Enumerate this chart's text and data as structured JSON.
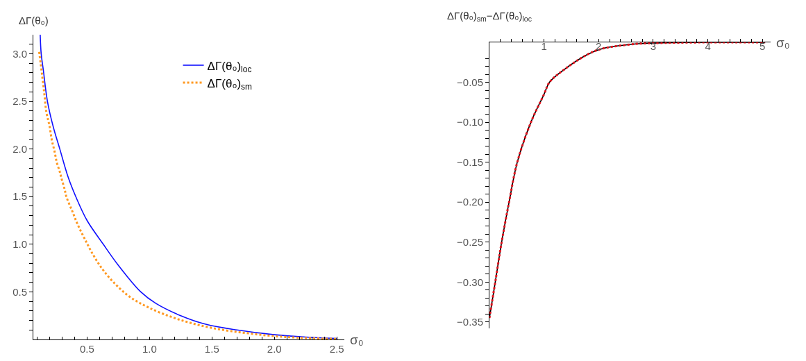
{
  "chart_data": [
    {
      "type": "line",
      "xlabel": "σ₀",
      "ylabel": "ΔΓ(θ₀)",
      "legend": "top right",
      "marker": "none",
      "xlim": [
        0.07,
        2.56
      ],
      "ylim": [
        0,
        3.2
      ],
      "xticks": [
        {
          "value": 0.1,
          "label": null
        },
        {
          "value": 0.2,
          "label": null
        },
        {
          "value": 0.3,
          "label": null
        },
        {
          "value": 0.4,
          "label": null
        },
        0.5,
        {
          "value": 0.6,
          "label": null
        },
        {
          "value": 0.7,
          "label": null
        },
        {
          "value": 0.8,
          "label": null
        },
        {
          "value": 0.9,
          "label": null
        },
        {
          "value": 1,
          "label": "1.0"
        },
        {
          "value": 1.1,
          "label": null
        },
        {
          "value": 1.2,
          "label": null
        },
        {
          "value": 1.3,
          "label": null
        },
        {
          "value": 1.4,
          "label": null
        },
        1.5,
        {
          "value": 1.6,
          "label": null
        },
        {
          "value": 1.7,
          "label": null
        },
        {
          "value": 1.8,
          "label": null
        },
        {
          "value": 1.9,
          "label": null
        },
        {
          "value": 2,
          "label": "2.0"
        },
        {
          "value": 2.1,
          "label": null
        },
        {
          "value": 2.2,
          "label": null
        },
        {
          "value": 2.3,
          "label": null
        },
        {
          "value": 2.4,
          "label": null
        },
        2.5
      ],
      "yticks": [
        {
          "value": 0.1,
          "label": null
        },
        {
          "value": 0.2,
          "label": null
        },
        {
          "value": 0.3,
          "label": null
        },
        {
          "value": 0.4,
          "label": null
        },
        0.5,
        {
          "value": 0.6,
          "label": null
        },
        {
          "value": 0.7,
          "label": null
        },
        {
          "value": 0.8,
          "label": null
        },
        {
          "value": 0.9,
          "label": null
        },
        {
          "value": 1,
          "label": "1.0"
        },
        {
          "value": 1.1,
          "label": null
        },
        {
          "value": 1.2,
          "label": null
        },
        {
          "value": 1.3,
          "label": null
        },
        {
          "value": 1.4,
          "label": null
        },
        1.5,
        {
          "value": 1.6,
          "label": null
        },
        {
          "value": 1.7,
          "label": null
        },
        {
          "value": 1.8,
          "label": null
        },
        {
          "value": 1.9,
          "label": null
        },
        {
          "value": 2,
          "label": "2.0"
        },
        {
          "value": 2.1,
          "label": null
        },
        {
          "value": 2.2,
          "label": null
        },
        {
          "value": 2.3,
          "label": null
        },
        {
          "value": 2.4,
          "label": null
        },
        2.5,
        {
          "value": 2.6,
          "label": null
        },
        {
          "value": 2.7,
          "label": null
        },
        {
          "value": 2.8,
          "label": null
        },
        {
          "value": 2.9,
          "label": null
        },
        {
          "value": 3,
          "label": "3.0"
        },
        {
          "value": 3.1,
          "label": null
        }
      ],
      "series": [
        {
          "name": "ΔΓ(θ₀)$_{loc}$",
          "color": "#1010ff",
          "line_style": "solid",
          "x": [
            0.125,
            0.133,
            0.15,
            0.183,
            0.23,
            0.282,
            0.35,
            0.41,
            0.5,
            0.63,
            0.75,
            0.93,
            1.05,
            1.25,
            1.45,
            1.7,
            2.0,
            2.25,
            2.5
          ],
          "values": [
            3.2,
            3.0,
            2.83,
            2.5,
            2.23,
            2.0,
            1.7,
            1.5,
            1.25,
            1.0,
            0.78,
            0.5,
            0.38,
            0.25,
            0.16,
            0.1,
            0.05,
            0.025,
            0.01
          ]
        },
        {
          "name": "ΔΓ(θ₀)$_{sm}$",
          "color": "#ff9922",
          "line_style": "dotted",
          "x": [
            0.117,
            0.14,
            0.159,
            0.174,
            0.2,
            0.217,
            0.239,
            0.258,
            0.282,
            0.298,
            0.32,
            0.337,
            0.381,
            0.424,
            0.48,
            0.54,
            0.617,
            0.72,
            0.84,
            0.995,
            1.19,
            1.39,
            1.59,
            1.79,
            1.99,
            2.19,
            2.5
          ],
          "values": [
            3.02,
            2.78,
            2.57,
            2.39,
            2.24,
            2.1,
            1.98,
            1.86,
            1.76,
            1.68,
            1.58,
            1.49,
            1.35,
            1.21,
            1.06,
            0.91,
            0.75,
            0.59,
            0.45,
            0.334,
            0.23,
            0.153,
            0.1,
            0.065,
            0.036,
            0.019,
            0.005
          ]
        }
      ]
    },
    {
      "type": "line",
      "xlabel": "σ₀",
      "ylabel": "ΔΓ(θ₀)$_{sm}$−ΔΓ(θ₀)$_{loc}$",
      "marker": "none",
      "xlim": [
        0,
        5.15
      ],
      "ylim": [
        -0.358,
        0
      ],
      "xticks": [
        {
          "value": 0.2,
          "label": null
        },
        {
          "value": 0.4,
          "label": null
        },
        {
          "value": 0.6,
          "label": null
        },
        {
          "value": 0.8,
          "label": null
        },
        1,
        {
          "value": 1.2,
          "label": null
        },
        {
          "value": 1.4,
          "label": null
        },
        {
          "value": 1.6,
          "label": null
        },
        {
          "value": 1.8,
          "label": null
        },
        2,
        {
          "value": 2.2,
          "label": null
        },
        {
          "value": 2.4,
          "label": null
        },
        {
          "value": 2.6,
          "label": null
        },
        {
          "value": 2.8,
          "label": null
        },
        3,
        {
          "value": 3.2,
          "label": null
        },
        {
          "value": 3.4,
          "label": null
        },
        {
          "value": 3.6,
          "label": null
        },
        {
          "value": 3.8,
          "label": null
        },
        4,
        {
          "value": 4.2,
          "label": null
        },
        {
          "value": 4.4,
          "label": null
        },
        {
          "value": 4.6,
          "label": null
        },
        {
          "value": 4.8,
          "label": null
        },
        5
      ],
      "yticks": [
        {
          "value": -0.02,
          "label": null
        },
        {
          "value": -0.03,
          "label": null
        },
        {
          "value": -0.04,
          "label": null
        },
        {
          "value": -0.05,
          "label": "−0.05"
        },
        {
          "value": -0.06,
          "label": null
        },
        {
          "value": -0.07,
          "label": null
        },
        {
          "value": -0.08,
          "label": null
        },
        {
          "value": -0.09,
          "label": null
        },
        {
          "value": -0.1,
          "label": "−0.10"
        },
        {
          "value": -0.11,
          "label": null
        },
        {
          "value": -0.12,
          "label": null
        },
        {
          "value": -0.13,
          "label": null
        },
        {
          "value": -0.14,
          "label": null
        },
        {
          "value": -0.15,
          "label": "−0.15"
        },
        {
          "value": -0.16,
          "label": null
        },
        {
          "value": -0.17,
          "label": null
        },
        {
          "value": -0.18,
          "label": null
        },
        {
          "value": -0.19,
          "label": null
        },
        {
          "value": -0.2,
          "label": "−0.20"
        },
        {
          "value": -0.21,
          "label": null
        },
        {
          "value": -0.22,
          "label": null
        },
        {
          "value": -0.23,
          "label": null
        },
        {
          "value": -0.24,
          "label": null
        },
        {
          "value": -0.25,
          "label": "−0.25"
        },
        {
          "value": -0.26,
          "label": null
        },
        {
          "value": -0.27,
          "label": null
        },
        {
          "value": -0.28,
          "label": null
        },
        {
          "value": -0.29,
          "label": null
        },
        {
          "value": -0.3,
          "label": "−0.30"
        },
        {
          "value": -0.31,
          "label": null
        },
        {
          "value": -0.32,
          "label": null
        },
        {
          "value": -0.33,
          "label": null
        },
        {
          "value": -0.34,
          "label": null
        },
        {
          "value": -0.35,
          "label": "−0.35"
        }
      ],
      "series": [
        {
          "color": "#000000",
          "line_style": "solid",
          "x": [
            0.0,
            0.107,
            0.224,
            0.36,
            0.51,
            0.76,
            1.0,
            1.1,
            1.35,
            1.8,
            2.06,
            2.68,
            3.0,
            4.0,
            5.05
          ],
          "values": [
            -0.345,
            -0.3,
            -0.25,
            -0.2,
            -0.15,
            -0.1,
            -0.065,
            -0.05,
            -0.035,
            -0.015,
            -0.008,
            -0.002,
            -0.001,
            0,
            0
          ]
        },
        {
          "color": "#e8141f",
          "line_style": "dotted",
          "x": [
            0.0,
            0.107,
            0.224,
            0.36,
            0.51,
            0.76,
            1.0,
            1.1,
            1.35,
            1.8,
            2.06,
            2.68,
            3.0,
            4.0,
            5.05
          ],
          "values": [
            -0.345,
            -0.3,
            -0.25,
            -0.2,
            -0.15,
            -0.1,
            -0.065,
            -0.05,
            -0.035,
            -0.015,
            -0.008,
            -0.002,
            -0.001,
            0,
            0
          ]
        }
      ]
    }
  ]
}
